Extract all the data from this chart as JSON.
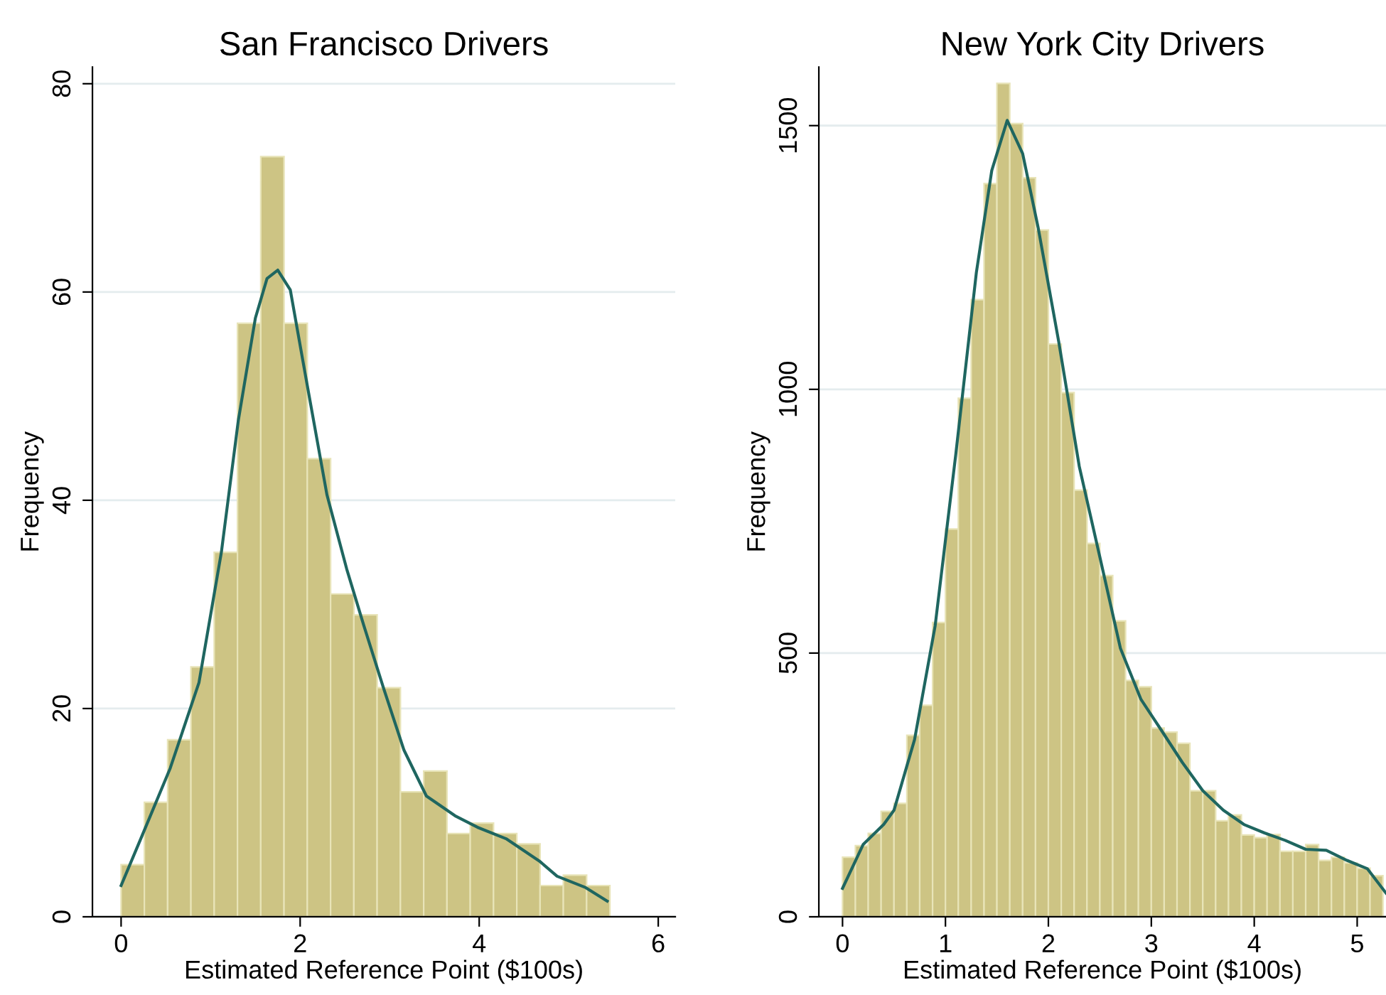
{
  "chart_data": [
    {
      "type": "histogram",
      "title": "San Francisco Drivers",
      "xlabel": "Estimated Reference Point ($100s)",
      "ylabel": "Frequency",
      "bins": [
        0,
        0.26,
        0.52,
        0.78,
        1.04,
        1.3,
        1.56,
        1.82,
        2.08,
        2.34,
        2.6,
        2.86,
        3.12,
        3.38,
        3.64,
        3.9,
        4.16,
        4.42,
        4.68,
        4.94,
        5.2,
        5.46
      ],
      "values": [
        5,
        11,
        17,
        24,
        35,
        57,
        73,
        57,
        44,
        31,
        29,
        22,
        12,
        14,
        8,
        9,
        8,
        7,
        3,
        4,
        3
      ],
      "color": "#cdc484",
      "series": [
        {
          "type": "line",
          "color": "#1f6660",
          "x": [
            0,
            0.235,
            0.55,
            0.87,
            1.12,
            1.31,
            1.5,
            1.63,
            1.75,
            1.89,
            2.08,
            2.3,
            2.52,
            2.71,
            2.93,
            3.16,
            3.41,
            3.73,
            3.98,
            4.3,
            4.68,
            4.87,
            5.19,
            5.43
          ],
          "values": [
            3,
            7.8,
            14.3,
            22.5,
            35,
            47.7,
            57.5,
            61.3,
            62.1,
            60.2,
            51,
            40.5,
            33.4,
            28,
            22,
            16,
            11.6,
            9.7,
            8.6,
            7.5,
            5.3,
            3.9,
            2.8,
            1.5
          ]
        }
      ],
      "xlim": [
        -0.32,
        6.19
      ],
      "ylim": [
        0,
        81.6
      ],
      "xticks": [
        0,
        2,
        4,
        6
      ],
      "yticks": [
        0,
        20,
        40,
        60,
        80
      ],
      "grid": "y",
      "legend": false
    },
    {
      "type": "histogram",
      "title": "New York City Drivers",
      "xlabel": "Estimated Reference Point ($100s)",
      "ylabel": "Frequency",
      "bins": [
        0,
        0.125,
        0.25,
        0.375,
        0.5,
        0.625,
        0.75,
        0.875,
        1,
        1.125,
        1.25,
        1.375,
        1.5,
        1.625,
        1.75,
        1.875,
        2,
        2.125,
        2.25,
        2.375,
        2.5,
        2.625,
        2.75,
        2.875,
        3,
        3.125,
        3.25,
        3.375,
        3.5,
        3.625,
        3.75,
        3.875,
        4,
        4.125,
        4.25,
        4.375,
        4.5,
        4.625,
        4.75,
        4.875,
        5,
        5.125,
        5.25
      ],
      "values": [
        113,
        135,
        158,
        200,
        215,
        344,
        401,
        558,
        735,
        983,
        1170,
        1390,
        1580,
        1504,
        1401,
        1302,
        1086,
        994,
        809,
        708,
        647,
        561,
        448,
        436,
        358,
        350,
        329,
        239,
        239,
        182,
        193,
        155,
        150,
        156,
        124,
        124,
        137,
        107,
        113,
        102,
        92,
        78
      ],
      "color": "#cdc484",
      "series": [
        {
          "type": "line",
          "color": "#1f6660",
          "x": [
            0,
            0.2,
            0.4,
            0.5,
            0.7,
            0.9,
            1.1,
            1.3,
            1.45,
            1.6,
            1.75,
            1.9,
            2.1,
            2.3,
            2.5,
            2.7,
            2.9,
            3.1,
            3.3,
            3.5,
            3.7,
            3.9,
            4.1,
            4.3,
            4.5,
            4.7,
            4.9,
            5.1,
            5.28
          ],
          "values": [
            54,
            137,
            175,
            202,
            336,
            552,
            876,
            1221,
            1415,
            1510,
            1447,
            1307,
            1091,
            854,
            682,
            509,
            412,
            353,
            293,
            239,
            202,
            175,
            159,
            145,
            128,
            126,
            107,
            91,
            45
          ]
        }
      ],
      "xlim": [
        -0.23,
        5.28
      ],
      "ylim": [
        0,
        1611
      ],
      "xticks": [
        0,
        1,
        2,
        3,
        4,
        5
      ],
      "yticks": [
        0,
        500,
        1000,
        1500
      ],
      "grid": "y",
      "legend": false
    }
  ]
}
